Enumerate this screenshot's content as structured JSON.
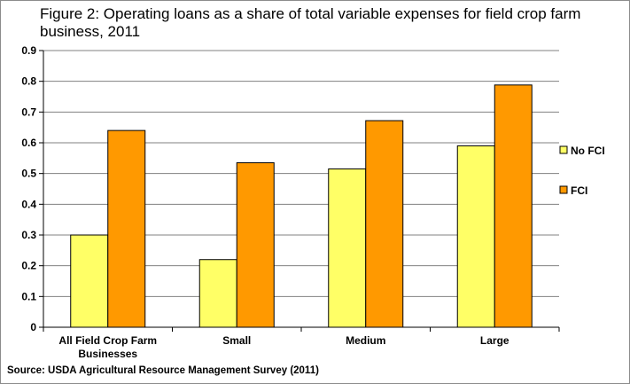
{
  "chart_data": {
    "type": "bar",
    "title": "Figure 2: Operating loans as a share of total variable expenses for field crop farm business, 2011",
    "source": "Source: USDA Agricultural Resource Management Survey (2011)",
    "categories": [
      [
        "All Field Crop Farm",
        "Businesses"
      ],
      [
        "Small"
      ],
      [
        "Medium"
      ],
      [
        "Large"
      ]
    ],
    "series": [
      {
        "name": "No FCI",
        "color": "#ffff66",
        "values": [
          0.3,
          0.22,
          0.515,
          0.59
        ]
      },
      {
        "name": "FCI",
        "color": "#ff9900",
        "values": [
          0.64,
          0.535,
          0.672,
          0.788
        ]
      }
    ],
    "ylim": [
      0,
      0.9
    ],
    "yticks": [
      "0",
      "0.1",
      "0.2",
      "0.3",
      "0.4",
      "0.5",
      "0.6",
      "0.7",
      "0.8",
      "0.9"
    ],
    "grid": true,
    "legend_position": "right"
  }
}
